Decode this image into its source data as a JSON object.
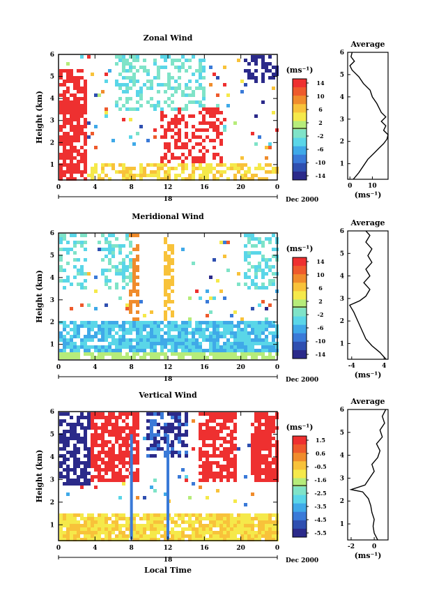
{
  "chart_data": [
    {
      "type": "heatmap",
      "title": "Zonal Wind",
      "ylabel": "Height (km)",
      "xticks": [
        "0",
        "4",
        "8",
        "12",
        "16",
        "20",
        "0"
      ],
      "xlim": [
        0,
        24
      ],
      "yticks": [
        "1",
        "2",
        "3",
        "4",
        "5",
        "6"
      ],
      "ylim": [
        0.3,
        6.0
      ],
      "date_label": "18",
      "month_label": "Dec 2000",
      "colorbar": {
        "unit": "(ms⁻¹)",
        "ticks": [
          "14",
          "10",
          "6",
          "2",
          "-2",
          "-6",
          "-10",
          "-14"
        ],
        "range": [
          -16,
          16
        ]
      },
      "profile": {
        "title": "Average",
        "xlabel": "(ms⁻¹)",
        "xticks": [
          "0",
          "10"
        ],
        "xlim": [
          -1,
          17
        ],
        "points": [
          [
            1.5,
            0.3
          ],
          [
            4,
            0.6
          ],
          [
            6,
            0.9
          ],
          [
            8,
            1.2
          ],
          [
            11,
            1.5
          ],
          [
            13,
            1.7
          ],
          [
            15,
            1.9
          ],
          [
            16.5,
            2.1
          ],
          [
            17,
            2.3
          ],
          [
            15,
            2.5
          ],
          [
            16,
            2.7
          ],
          [
            14,
            2.9
          ],
          [
            16,
            3.1
          ],
          [
            14,
            3.3
          ],
          [
            13,
            3.5
          ],
          [
            12,
            3.7
          ],
          [
            10,
            4.0
          ],
          [
            9,
            4.3
          ],
          [
            6,
            4.6
          ],
          [
            4,
            4.9
          ],
          [
            1,
            5.2
          ],
          [
            0,
            5.4
          ],
          [
            2,
            5.6
          ],
          [
            0.5,
            5.8
          ],
          [
            1,
            6.0
          ]
        ]
      },
      "series_colors": [
        "#2b2a8a",
        "#3a7ad8",
        "#5ad6e8",
        "#f5e94a",
        "#f08c2c",
        "#ee3030"
      ]
    },
    {
      "type": "heatmap",
      "title": "Meridional Wind",
      "ylabel": "Height (km)",
      "xticks": [
        "0",
        "4",
        "8",
        "12",
        "16",
        "20",
        "0"
      ],
      "xlim": [
        0,
        24
      ],
      "yticks": [
        "1",
        "2",
        "3",
        "4",
        "5",
        "6"
      ],
      "ylim": [
        0.3,
        6.0
      ],
      "date_label": "18",
      "month_label": "Dec 2000",
      "colorbar": {
        "unit": "(ms⁻¹)",
        "ticks": [
          "14",
          "10",
          "6",
          "2",
          "-2",
          "-6",
          "-10",
          "-14"
        ],
        "range": [
          -16,
          16
        ]
      },
      "profile": {
        "title": "Average",
        "xlabel": "(ms⁻¹)",
        "xticks": [
          "-4",
          "4"
        ],
        "xlim": [
          -5,
          5
        ],
        "points": [
          [
            4.5,
            0.3
          ],
          [
            3,
            0.6
          ],
          [
            1,
            0.9
          ],
          [
            -0.5,
            1.2
          ],
          [
            -1.5,
            1.6
          ],
          [
            -2.5,
            2.0
          ],
          [
            -3.5,
            2.4
          ],
          [
            -4.5,
            2.7
          ],
          [
            -2,
            2.9
          ],
          [
            -0.5,
            3.1
          ],
          [
            0.5,
            3.4
          ],
          [
            -1,
            3.7
          ],
          [
            0.5,
            4.0
          ],
          [
            -0.5,
            4.3
          ],
          [
            1,
            4.6
          ],
          [
            0,
            4.9
          ],
          [
            1,
            5.2
          ],
          [
            -0.5,
            5.5
          ],
          [
            0.5,
            5.8
          ],
          [
            -0.5,
            6.0
          ]
        ]
      },
      "series_colors": [
        "#2b2a8a",
        "#3a7ad8",
        "#5ad6e8",
        "#f5e94a",
        "#f08c2c",
        "#ee3030"
      ]
    },
    {
      "type": "heatmap",
      "title": "Vertical Wind",
      "ylabel": "Height (km)",
      "xlabel": "Local Time",
      "xticks": [
        "0",
        "4",
        "8",
        "12",
        "16",
        "20",
        "0"
      ],
      "xlim": [
        0,
        24
      ],
      "yticks": [
        "1",
        "2",
        "3",
        "4",
        "5",
        "6"
      ],
      "ylim": [
        0.3,
        6.0
      ],
      "date_label": "18",
      "month_label": "Dec 2000",
      "colorbar": {
        "unit": "(ms⁻¹)",
        "ticks": [
          "1.5",
          "0.6",
          "-0.5",
          "-1.6",
          "-2.5",
          "-3.5",
          "-4.5",
          "-5.5"
        ],
        "range": [
          -6,
          2
        ]
      },
      "profile": {
        "title": "Average",
        "xlabel": "(ms⁻¹)",
        "xticks": [
          "-2",
          "0"
        ],
        "xlim": [
          -2.3,
          1.2
        ],
        "points": [
          [
            0.3,
            0.3
          ],
          [
            0,
            0.6
          ],
          [
            -0.1,
            0.9
          ],
          [
            0,
            1.2
          ],
          [
            -0.2,
            1.5
          ],
          [
            -0.3,
            1.8
          ],
          [
            -0.5,
            2.1
          ],
          [
            -1.0,
            2.4
          ],
          [
            -2.0,
            2.5
          ],
          [
            -0.8,
            2.7
          ],
          [
            -0.4,
            3.0
          ],
          [
            0,
            3.3
          ],
          [
            -0.2,
            3.6
          ],
          [
            0.3,
            3.9
          ],
          [
            0.5,
            4.2
          ],
          [
            0.2,
            4.5
          ],
          [
            0.7,
            4.8
          ],
          [
            0.5,
            5.1
          ],
          [
            0.9,
            5.4
          ],
          [
            0.7,
            5.7
          ],
          [
            1.0,
            6.0
          ]
        ]
      },
      "series_colors": [
        "#2b2a8a",
        "#3a7ad8",
        "#5ad6e8",
        "#f5e94a",
        "#f08c2c",
        "#ee3030"
      ]
    }
  ]
}
